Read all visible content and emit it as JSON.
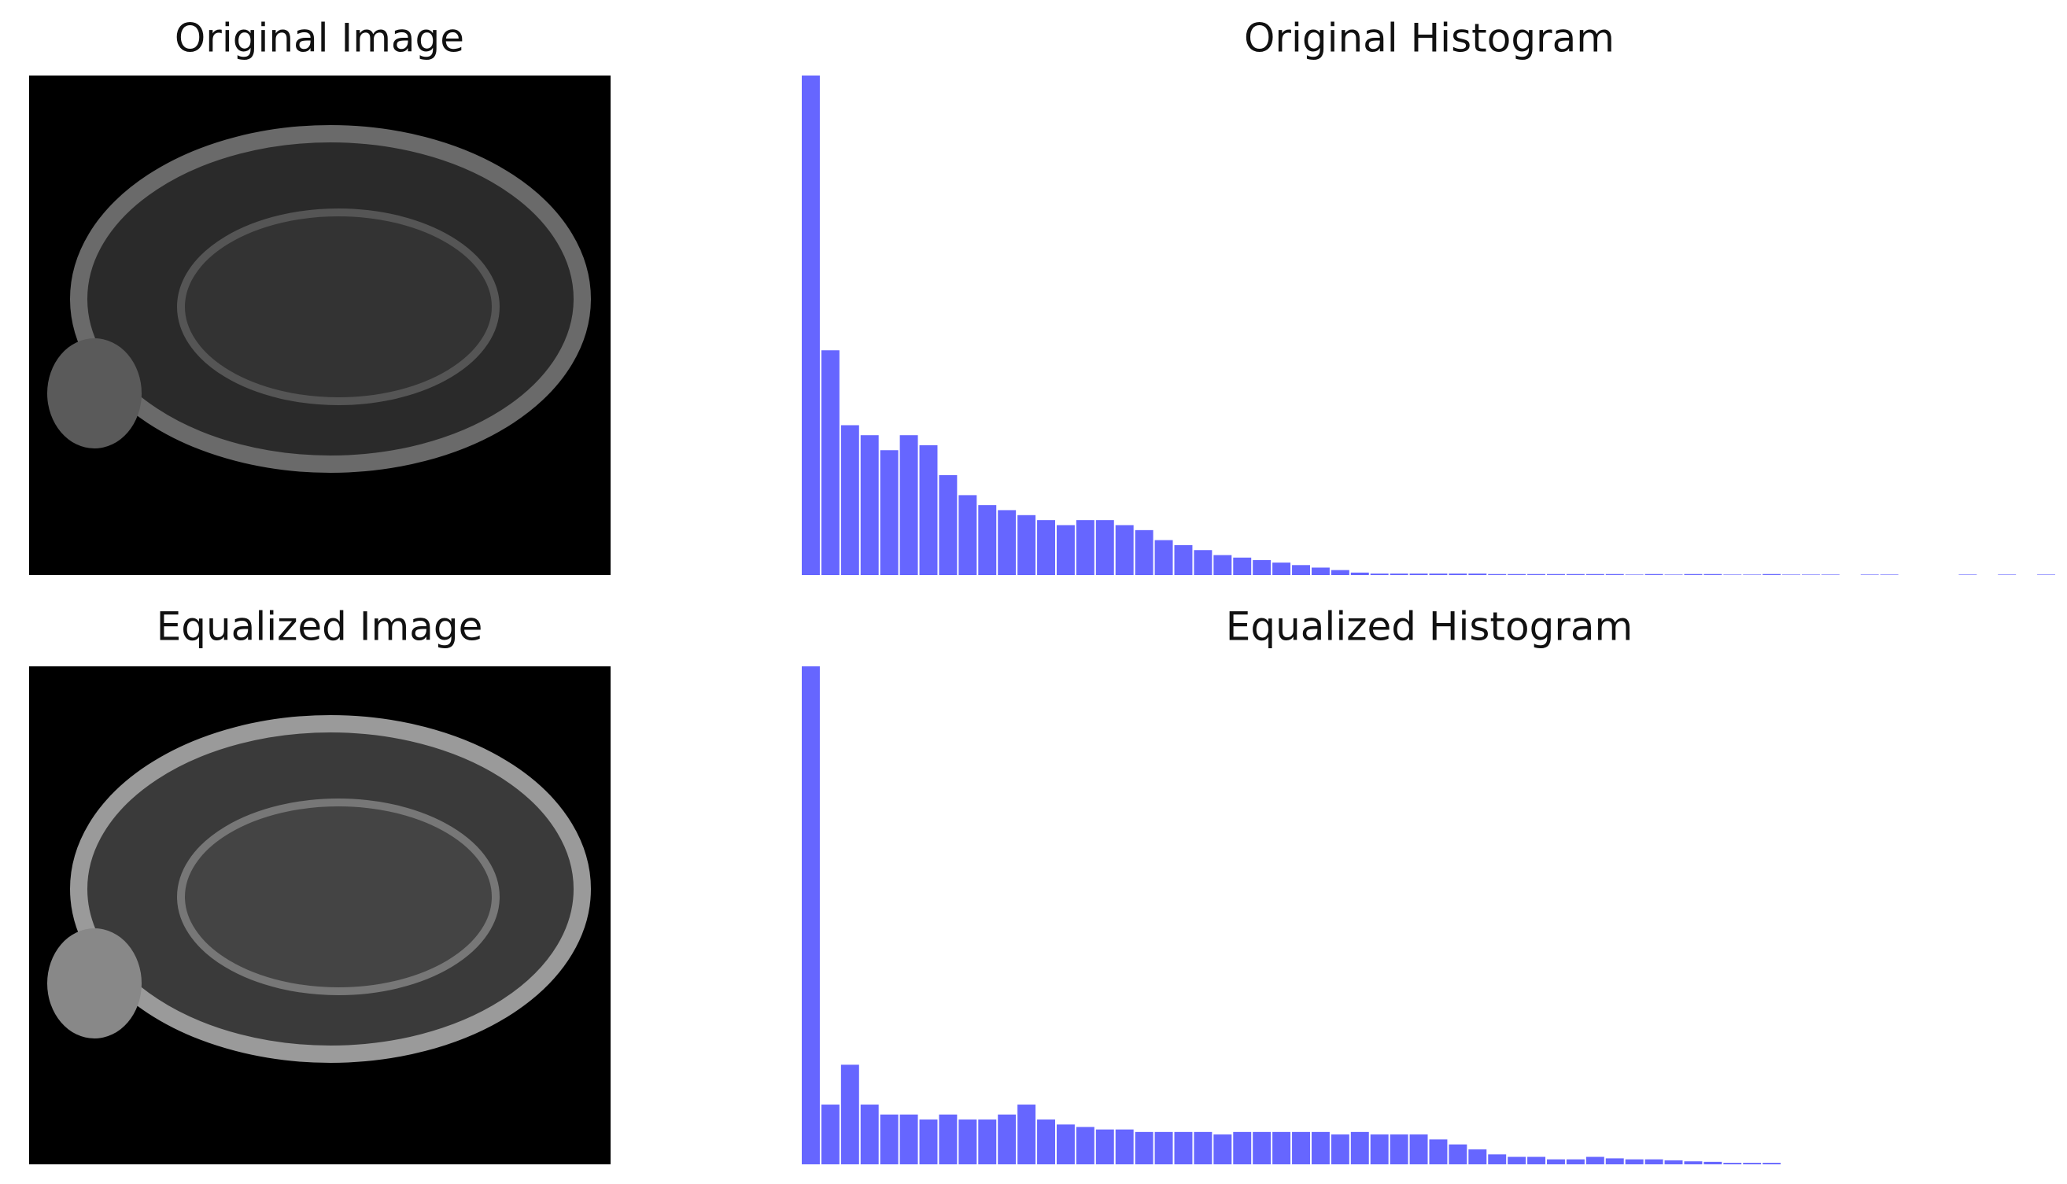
{
  "images": [
    {
      "title": "Original Image"
    },
    {
      "title": "Equalized Image"
    }
  ],
  "chart_data": [
    {
      "type": "bar",
      "title": "Original Histogram",
      "color": "#6666ff",
      "ylim": [
        0,
        100
      ],
      "values": [
        100,
        45,
        30,
        28,
        25,
        28,
        26,
        20,
        16,
        14,
        13,
        12,
        11,
        10,
        11,
        11,
        10,
        9,
        7,
        6,
        5,
        4,
        3.5,
        3,
        2.5,
        2,
        1.5,
        1,
        0.5,
        0.3,
        0.3,
        0.3,
        0.3,
        0.3,
        0.3,
        0.2,
        0.2,
        0.2,
        0.2,
        0.2,
        0.2,
        0.2,
        0.1,
        0.2,
        0.1,
        0.2,
        0.2,
        0.1,
        0.1,
        0.2,
        0.1,
        0.1,
        0.1,
        0,
        0.1,
        0.1,
        0,
        0,
        0,
        0.1,
        0,
        0.1,
        0,
        0.1
      ]
    },
    {
      "type": "bar",
      "title": "Equalized Histogram",
      "color": "#6666ff",
      "ylim": [
        0,
        100
      ],
      "values": [
        100,
        12,
        20,
        12,
        10,
        10,
        9,
        10,
        9,
        9,
        10,
        12,
        9,
        8,
        7.5,
        7,
        7,
        6.5,
        6.5,
        6.5,
        6.5,
        6,
        6.5,
        6.5,
        6.5,
        6.5,
        6.5,
        6,
        6.5,
        6,
        6,
        6,
        5,
        4,
        3,
        2,
        1.5,
        1.5,
        1,
        1,
        1.5,
        1.2,
        1,
        1,
        0.8,
        0.6,
        0.5,
        0.3,
        0.3,
        0.3,
        0,
        0,
        0,
        0,
        0,
        0,
        0,
        0,
        0,
        0,
        0,
        0,
        0,
        0
      ]
    }
  ]
}
